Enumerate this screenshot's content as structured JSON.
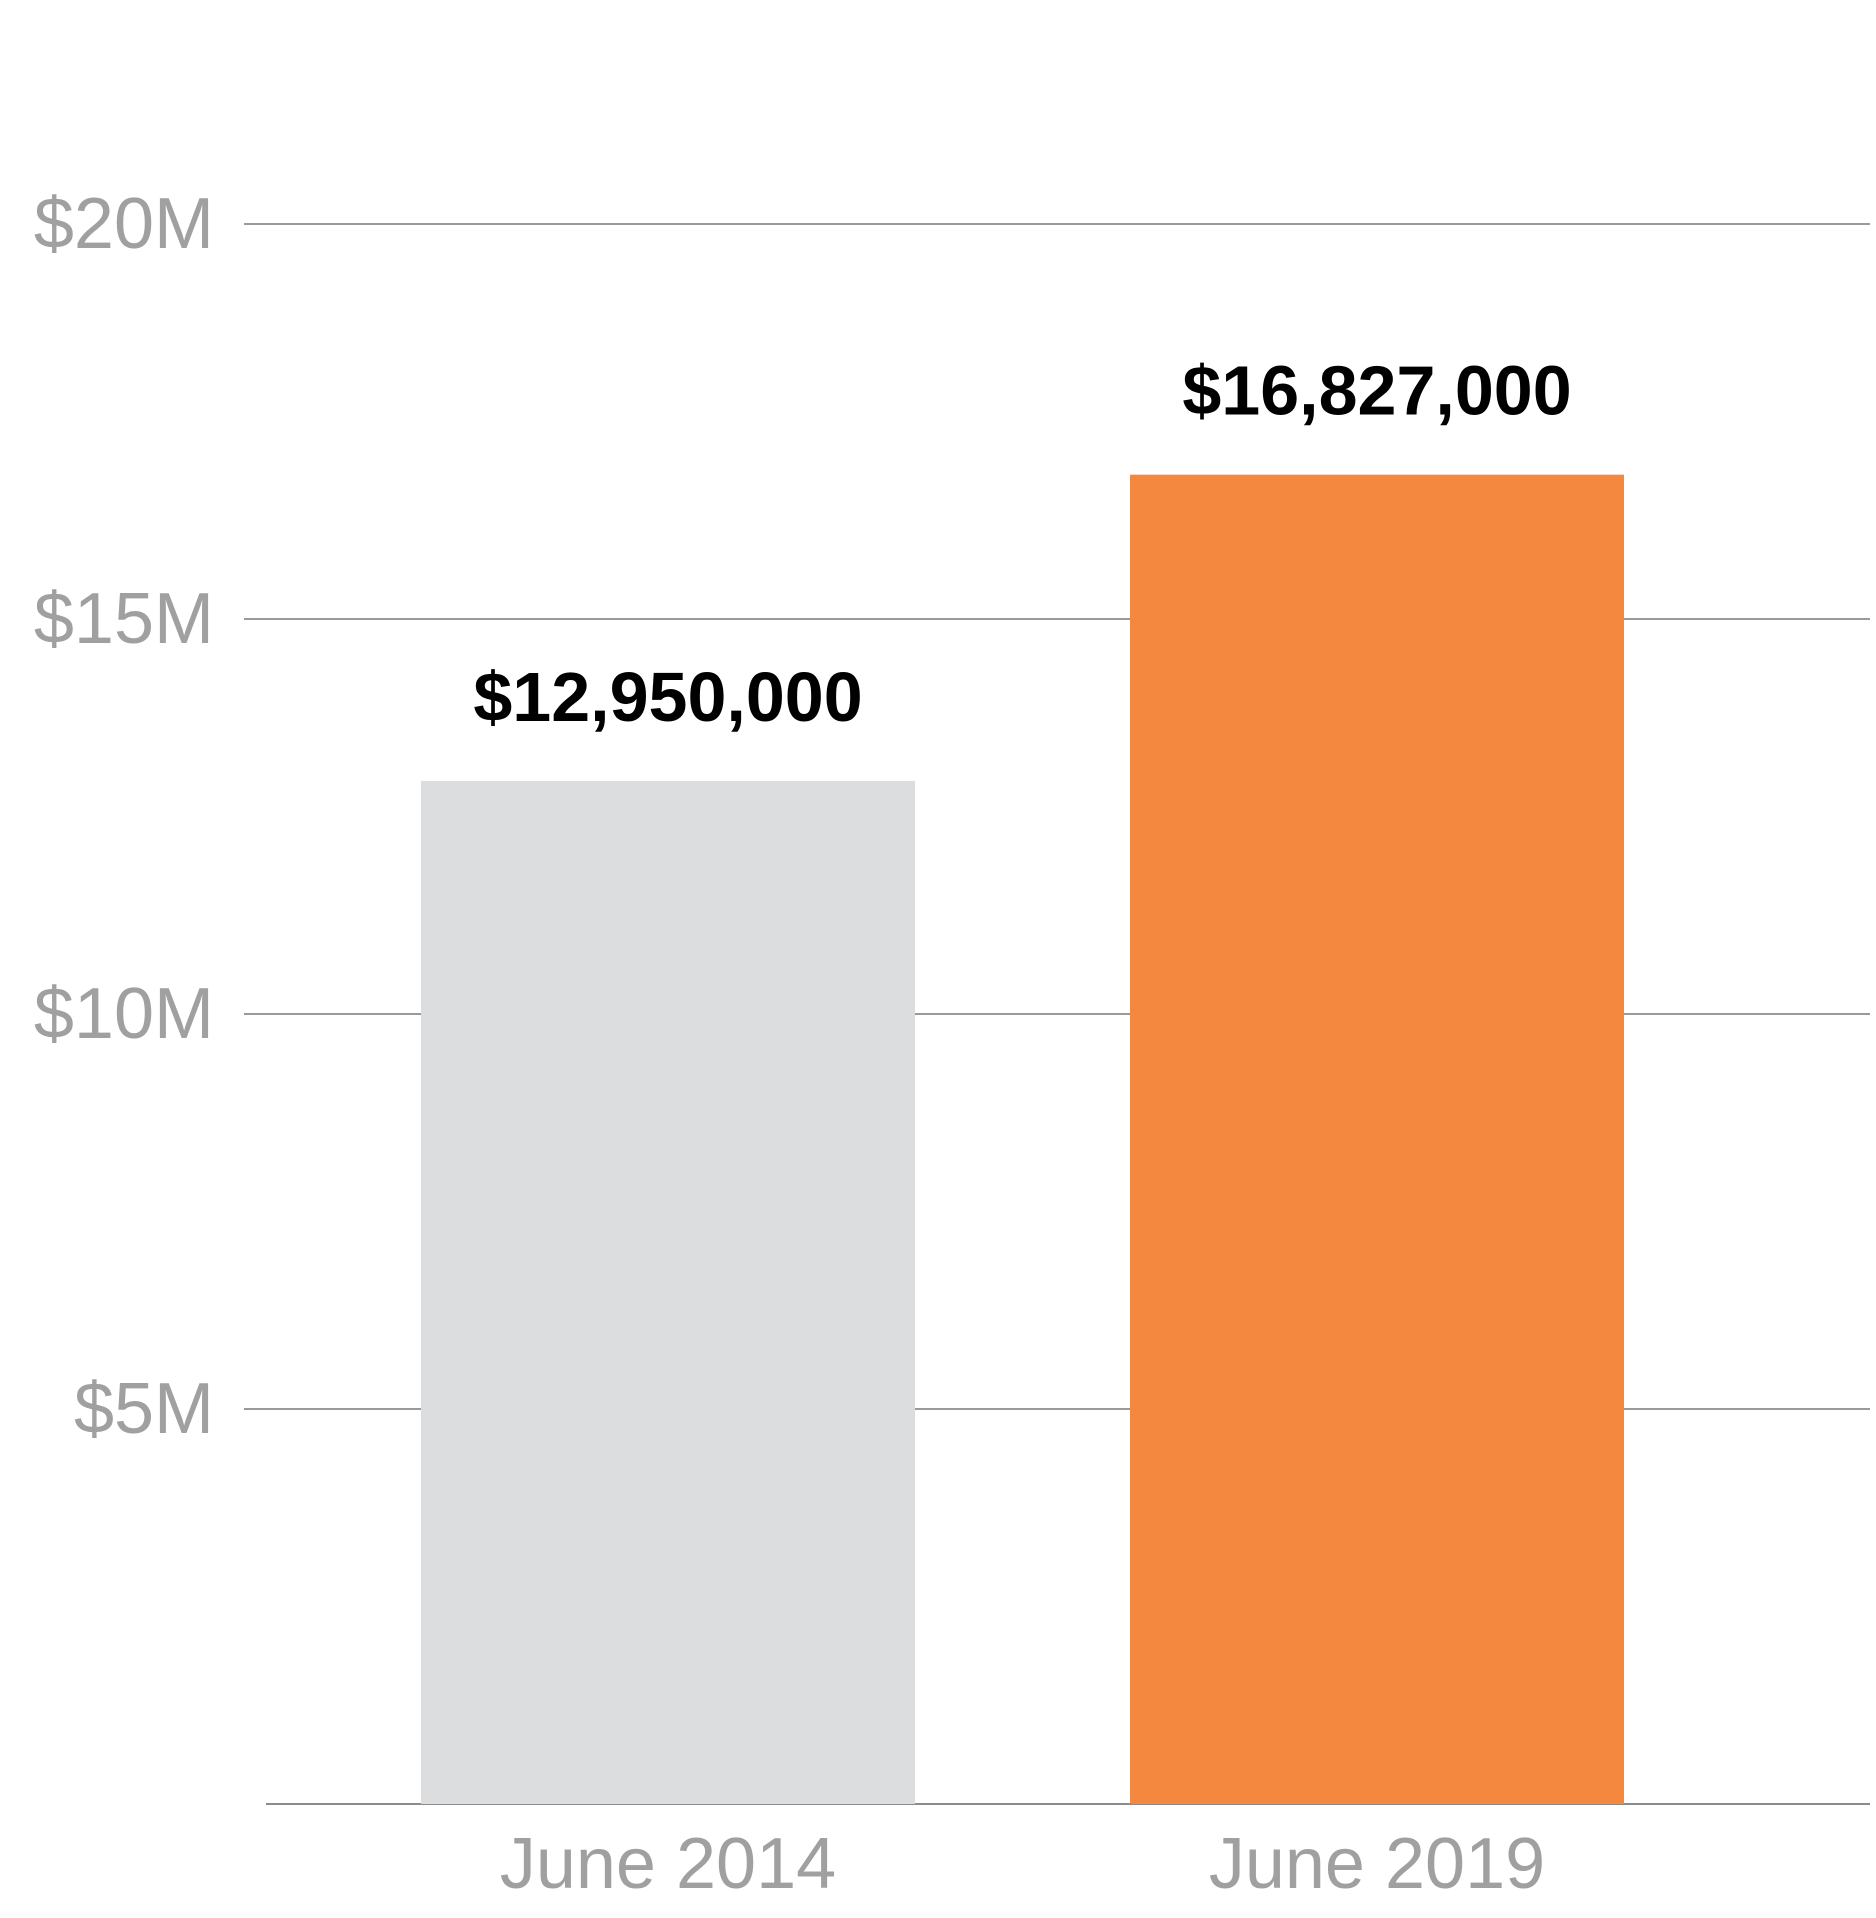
{
  "chart_data": {
    "type": "bar",
    "categories": [
      "June 2014",
      "June 2019"
    ],
    "values": [
      12950000,
      16827000
    ],
    "data_labels": [
      "$12,950,000",
      "$16,827,000"
    ],
    "bar_colors": [
      "#dcdddf",
      "#f5883f"
    ],
    "y_ticks": [
      {
        "value": 5000000,
        "label": "$5M"
      },
      {
        "value": 10000000,
        "label": "$10M"
      },
      {
        "value": 15000000,
        "label": "$15M"
      },
      {
        "value": 20000000,
        "label": "$20M"
      }
    ],
    "ylim": [
      0,
      20000000
    ],
    "title": "",
    "xlabel": "",
    "ylabel": "",
    "grid": true,
    "legend": "none"
  },
  "colors": {
    "grid": "#9a9a9a",
    "tick_text": "#a0a0a0",
    "label_text": "#000000"
  }
}
